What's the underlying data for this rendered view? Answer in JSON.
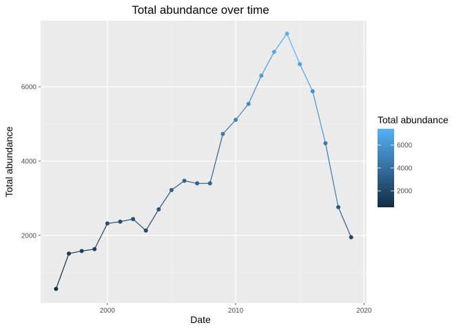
{
  "chart_data": {
    "type": "line",
    "title": "Total abundance over time",
    "xlabel": "Date",
    "ylabel": "Total abundance",
    "x_ticks": [
      "2000",
      "2010",
      "2020"
    ],
    "y_ticks": [
      "2000",
      "4000",
      "6000"
    ],
    "xlim": [
      1994.8,
      2020.2
    ],
    "ylim": [
      180,
      7780
    ],
    "grid": true,
    "x": [
      1996,
      1997,
      1998,
      1999,
      2000,
      2001,
      2002,
      2003,
      2004,
      2005,
      2006,
      2007,
      2008,
      2009,
      2010,
      2011,
      2012,
      2013,
      2014,
      2015,
      2016,
      2017,
      2018,
      2019
    ],
    "values": [
      560,
      1510,
      1580,
      1630,
      2320,
      2370,
      2440,
      2130,
      2700,
      3220,
      3470,
      3400,
      3400,
      4730,
      5110,
      5540,
      6300,
      6940,
      7430,
      6610,
      5880,
      4480,
      2760,
      1950
    ],
    "color_scale": {
      "title": "Total abundance",
      "ticks": [
        "2000",
        "4000",
        "6000"
      ],
      "min": 560,
      "max": 7430,
      "low_color": "#132b43",
      "high_color": "#56b1f7"
    },
    "legend_position": "right"
  }
}
